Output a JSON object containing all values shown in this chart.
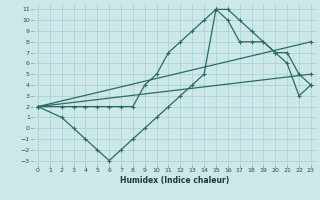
{
  "xlabel": "Humidex (Indice chaleur)",
  "bg_color": "#cde8e8",
  "grid_color": "#aacece",
  "line_color": "#2a6b62",
  "xlim": [
    -0.5,
    23.5
  ],
  "ylim": [
    -3.5,
    11.5
  ],
  "xticks": [
    0,
    1,
    2,
    3,
    4,
    5,
    6,
    7,
    8,
    9,
    10,
    11,
    12,
    13,
    14,
    15,
    16,
    17,
    18,
    19,
    20,
    21,
    22,
    23
  ],
  "yticks": [
    -3,
    -2,
    -1,
    0,
    1,
    2,
    3,
    4,
    5,
    6,
    7,
    8,
    9,
    10,
    11
  ],
  "curve_x": [
    0,
    2,
    3,
    4,
    5,
    6,
    7,
    8,
    9,
    10,
    11,
    12,
    13,
    14,
    15,
    16,
    17,
    18,
    20,
    21,
    22,
    23
  ],
  "curve_y": [
    2,
    2,
    2,
    2,
    2,
    2,
    2,
    2,
    4,
    5,
    7,
    8,
    9,
    10,
    11,
    11,
    10,
    9,
    7,
    7,
    5,
    4
  ],
  "zigzag_x": [
    0,
    2,
    3,
    4,
    5,
    6,
    7,
    8,
    9,
    10,
    11,
    12,
    13,
    14,
    15,
    16,
    17,
    18,
    19,
    20,
    21,
    22,
    23
  ],
  "zigzag_y": [
    2,
    1,
    0,
    -1,
    -2,
    -3,
    -2,
    -1,
    0,
    1,
    2,
    3,
    4,
    5,
    11,
    10,
    8,
    8,
    8,
    7,
    6,
    3,
    4
  ],
  "line1_x": [
    0,
    23
  ],
  "line1_y": [
    2,
    8
  ],
  "line2_x": [
    0,
    23
  ],
  "line2_y": [
    2,
    5
  ]
}
